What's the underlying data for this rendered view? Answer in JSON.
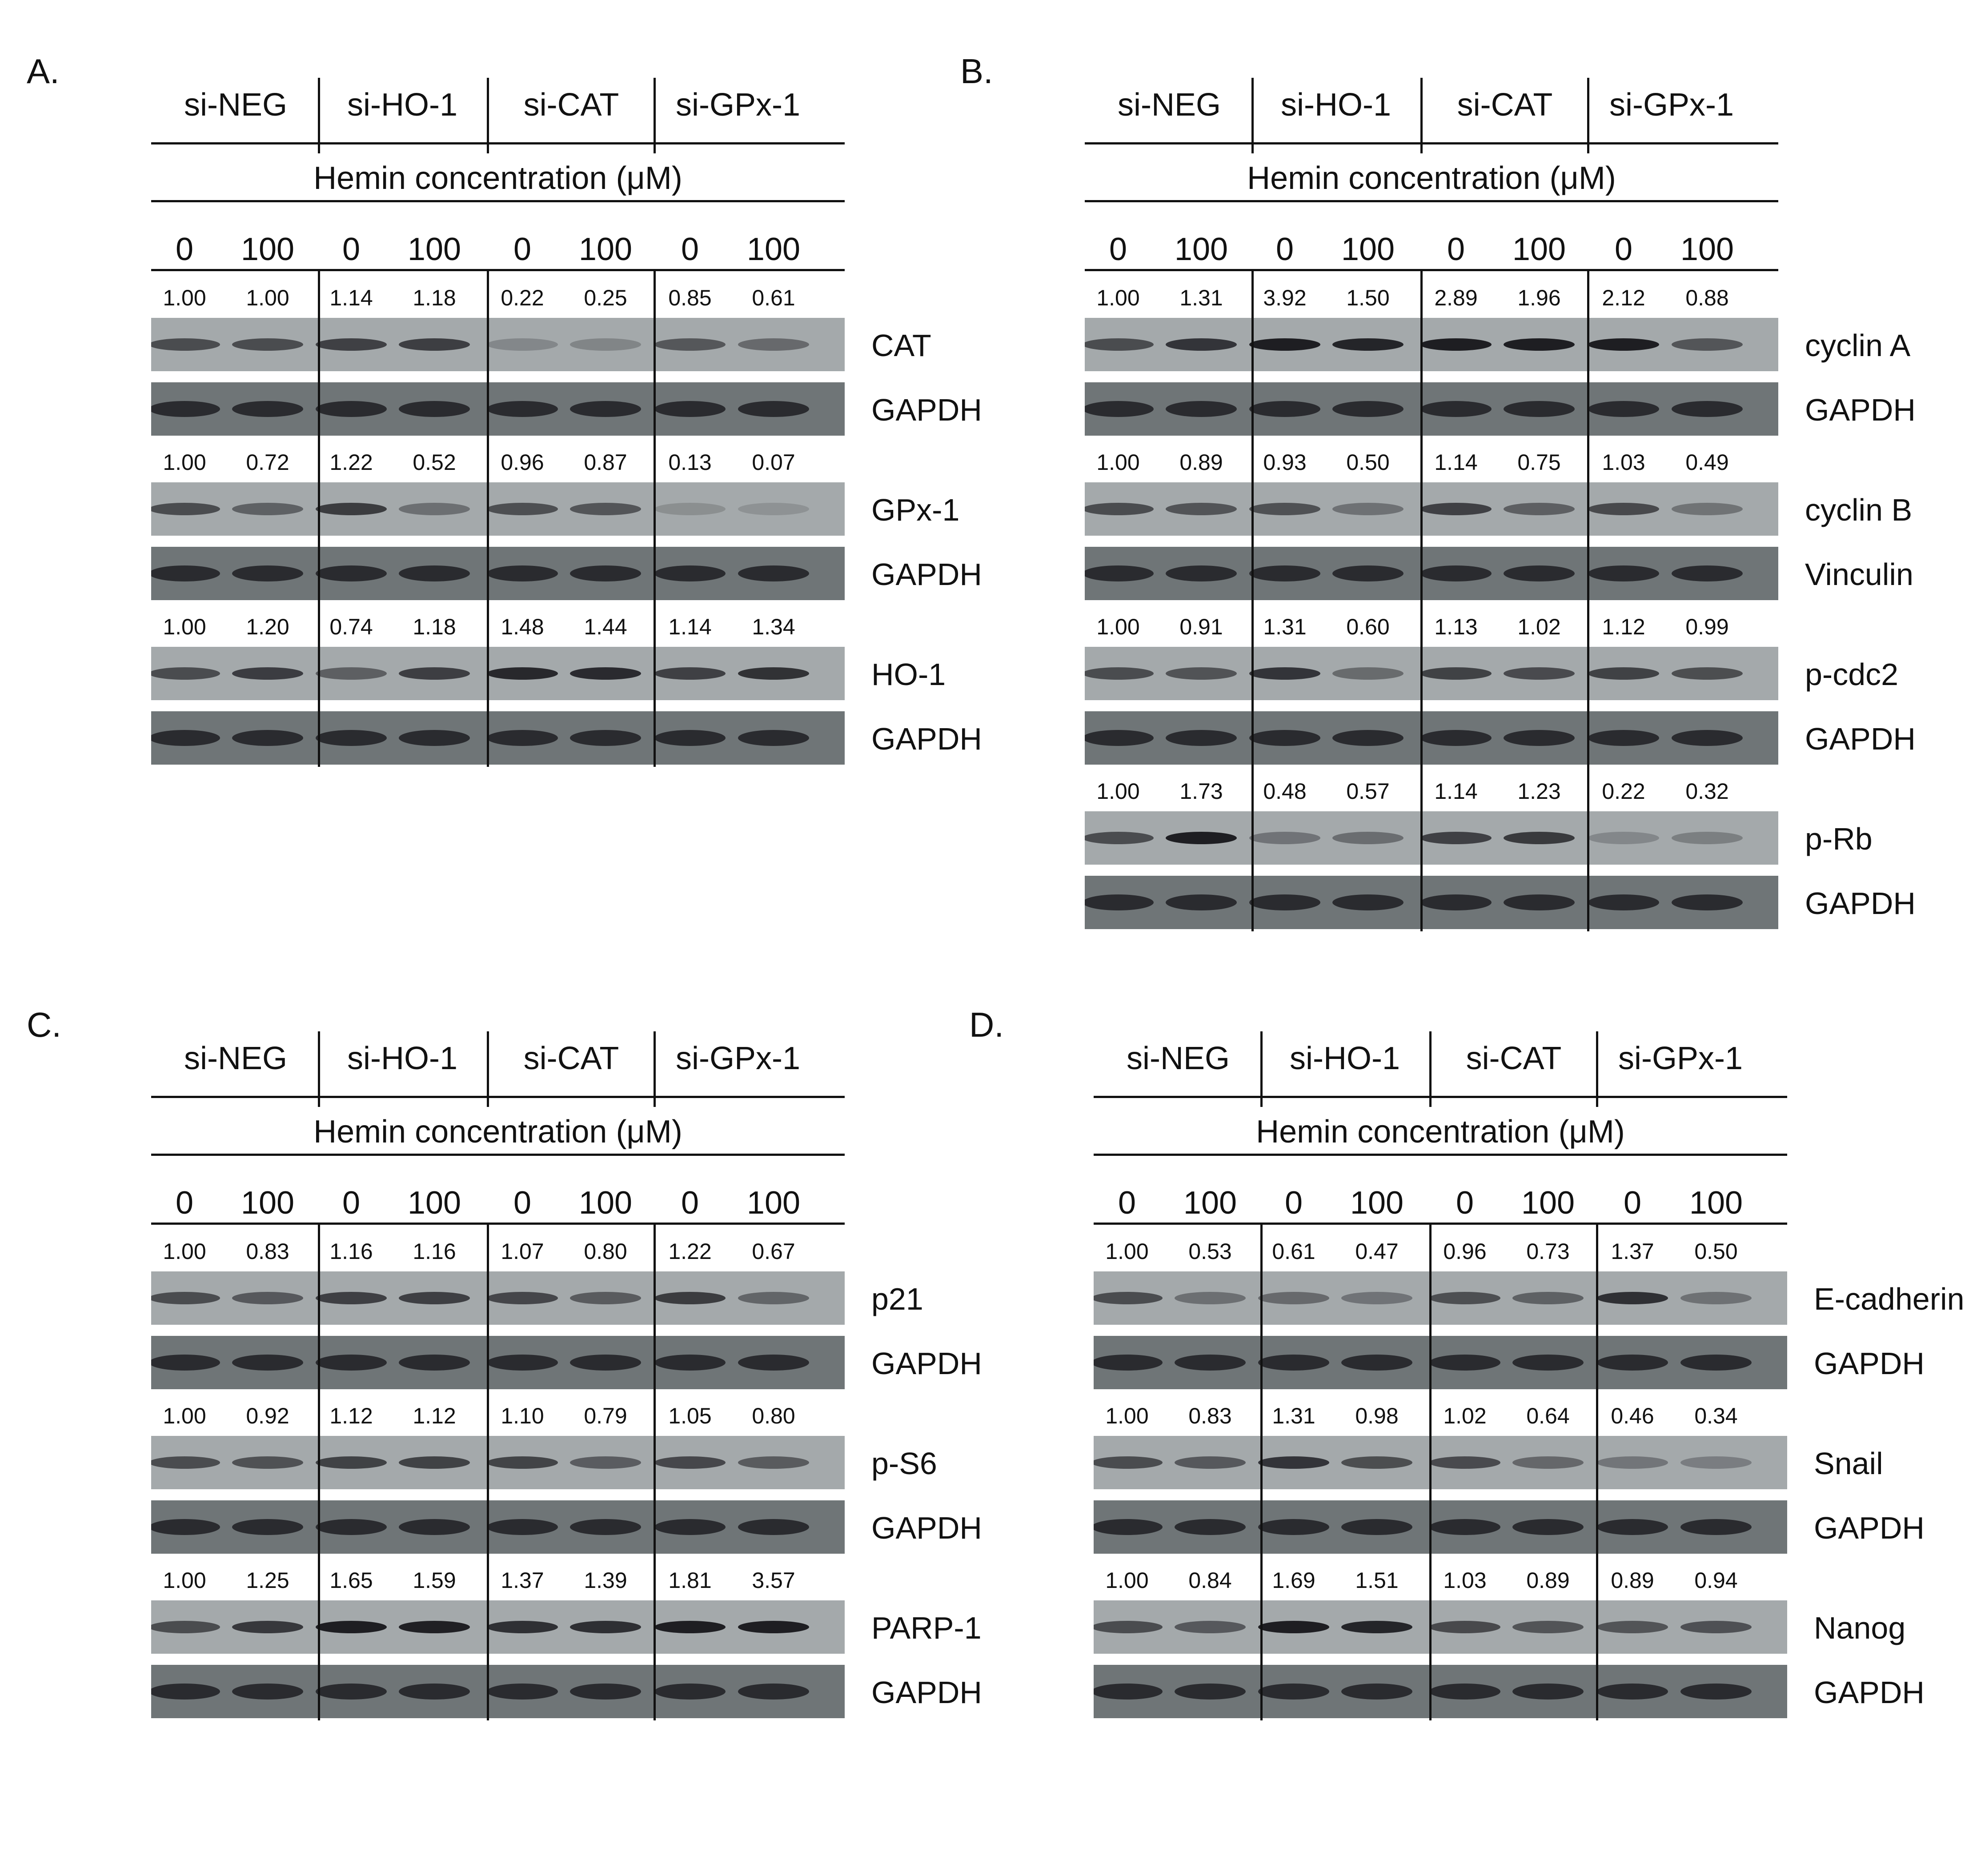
{
  "groups": [
    "si-NEG",
    "si-HO-1",
    "si-CAT",
    "si-GPx-1"
  ],
  "hemin_label": "Hemin concentration (μM)",
  "concentrations": [
    "0",
    "100",
    "0",
    "100",
    "0",
    "100",
    "0",
    "100"
  ],
  "colors": {
    "ink": "#111111",
    "blot_light": "#a4a9ab",
    "blot_dark": "#6f7577",
    "band": "#1e1e22"
  },
  "panels": [
    {
      "letter": "A.",
      "blots": [
        {
          "label": "CAT",
          "values": [
            "1.00",
            "1.00",
            "1.14",
            "1.18",
            "0.22",
            "0.25",
            "0.85",
            "0.61"
          ]
        },
        {
          "label": "GAPDH",
          "values": null
        },
        {
          "label": "GPx-1",
          "values": [
            "1.00",
            "0.72",
            "1.22",
            "0.52",
            "0.96",
            "0.87",
            "0.13",
            "0.07"
          ]
        },
        {
          "label": "GAPDH",
          "values": null
        },
        {
          "label": "HO-1",
          "values": [
            "1.00",
            "1.20",
            "0.74",
            "1.18",
            "1.48",
            "1.44",
            "1.14",
            "1.34"
          ]
        },
        {
          "label": "GAPDH",
          "values": null
        }
      ]
    },
    {
      "letter": "B.",
      "blots": [
        {
          "label": "cyclin A",
          "values": [
            "1.00",
            "1.31",
            "3.92",
            "1.50",
            "2.89",
            "1.96",
            "2.12",
            "0.88"
          ]
        },
        {
          "label": "GAPDH",
          "values": null
        },
        {
          "label": "cyclin B",
          "values": [
            "1.00",
            "0.89",
            "0.93",
            "0.50",
            "1.14",
            "0.75",
            "1.03",
            "0.49"
          ]
        },
        {
          "label": "Vinculin",
          "values": null
        },
        {
          "label": "p-cdc2",
          "values": [
            "1.00",
            "0.91",
            "1.31",
            "0.60",
            "1.13",
            "1.02",
            "1.12",
            "0.99"
          ]
        },
        {
          "label": "GAPDH",
          "values": null
        },
        {
          "label": "p-Rb",
          "values": [
            "1.00",
            "1.73",
            "0.48",
            "0.57",
            "1.14",
            "1.23",
            "0.22",
            "0.32"
          ]
        },
        {
          "label": "GAPDH",
          "values": null
        }
      ]
    },
    {
      "letter": "C.",
      "blots": [
        {
          "label": "p21",
          "values": [
            "1.00",
            "0.83",
            "1.16",
            "1.16",
            "1.07",
            "0.80",
            "1.22",
            "0.67"
          ]
        },
        {
          "label": "GAPDH",
          "values": null
        },
        {
          "label": "p-S6",
          "values": [
            "1.00",
            "0.92",
            "1.12",
            "1.12",
            "1.10",
            "0.79",
            "1.05",
            "0.80"
          ]
        },
        {
          "label": "GAPDH",
          "values": null
        },
        {
          "label": "PARP-1",
          "values": [
            "1.00",
            "1.25",
            "1.65",
            "1.59",
            "1.37",
            "1.39",
            "1.81",
            "3.57"
          ]
        },
        {
          "label": "GAPDH",
          "values": null
        }
      ]
    },
    {
      "letter": "D.",
      "blots": [
        {
          "label": "E-cadherin",
          "values": [
            "1.00",
            "0.53",
            "0.61",
            "0.47",
            "0.96",
            "0.73",
            "1.37",
            "0.50"
          ]
        },
        {
          "label": "GAPDH",
          "values": null
        },
        {
          "label": "Snail",
          "values": [
            "1.00",
            "0.83",
            "1.31",
            "0.98",
            "1.02",
            "0.64",
            "0.46",
            "0.34"
          ]
        },
        {
          "label": "GAPDH",
          "values": null
        },
        {
          "label": "Nanog",
          "values": [
            "1.00",
            "0.84",
            "1.69",
            "1.51",
            "1.03",
            "0.89",
            "0.89",
            "0.94"
          ]
        },
        {
          "label": "GAPDH",
          "values": null
        }
      ]
    }
  ]
}
